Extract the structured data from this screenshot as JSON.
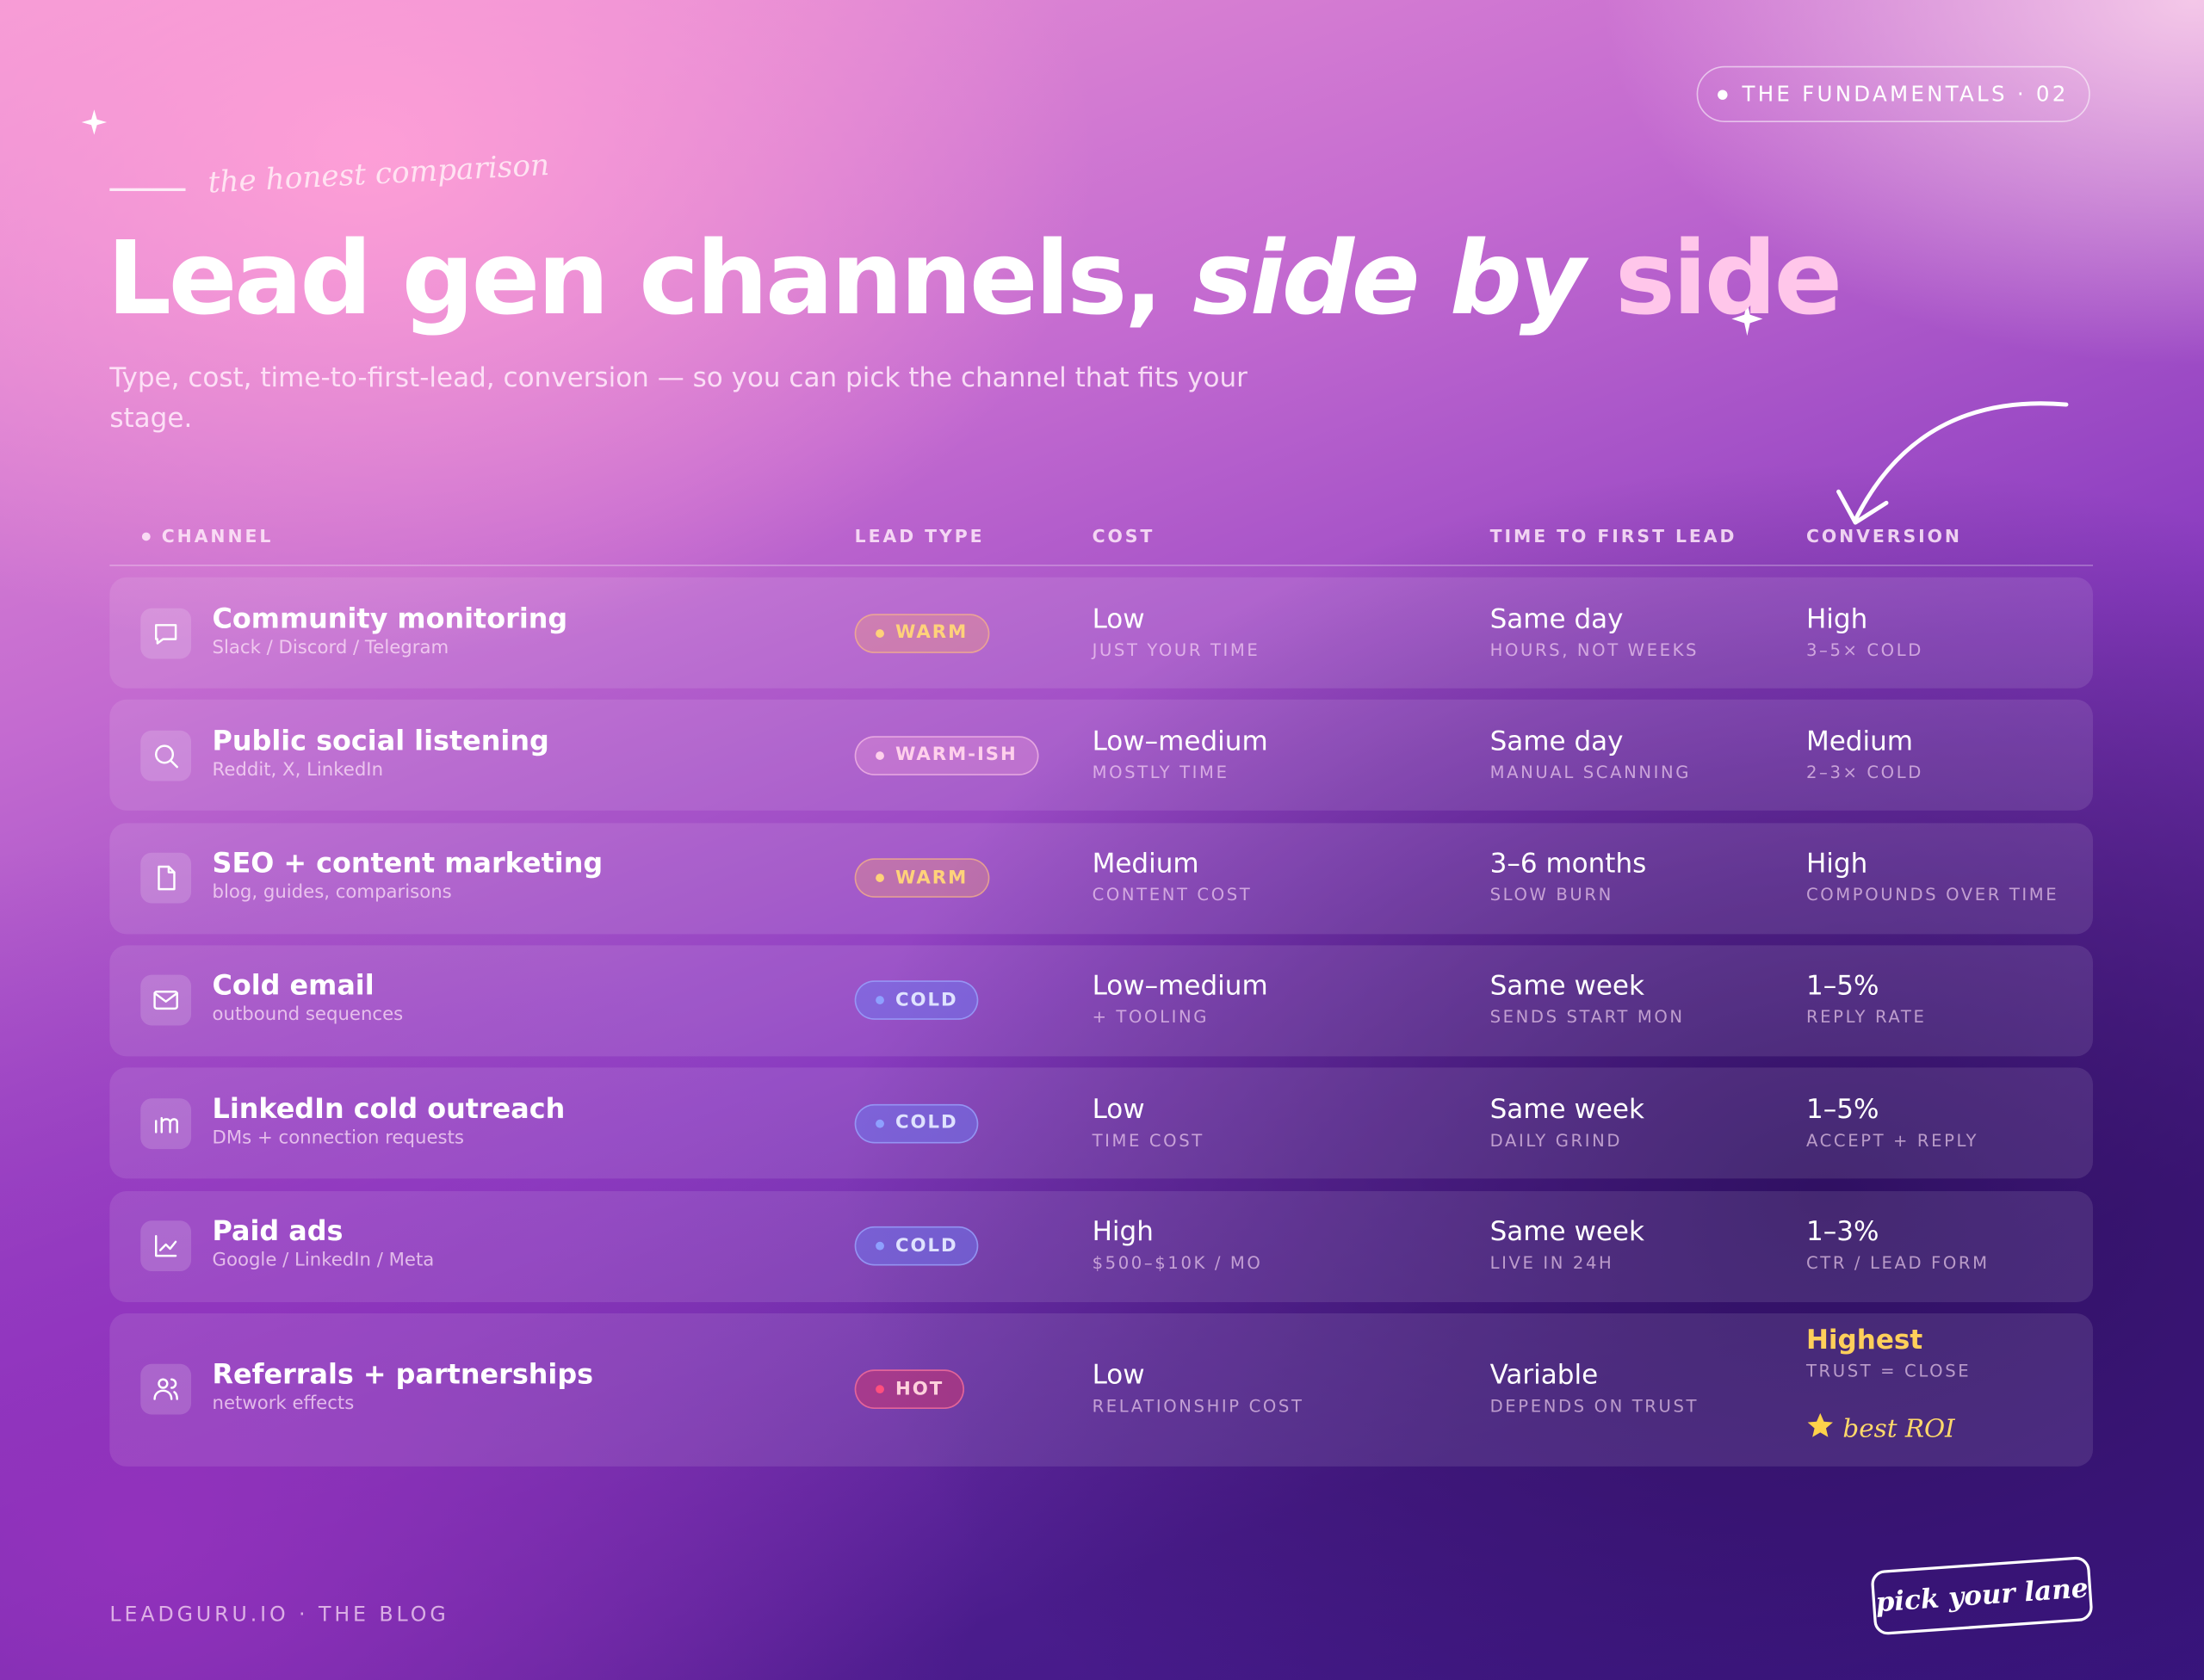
{
  "badge": "THE FUNDAMENTALS · 02",
  "eyebrow": "the honest comparison",
  "title": {
    "part1": "Lead gen channels,",
    "part2": "side by",
    "part3": "side"
  },
  "subtitle": "Type, cost, time-to-first-lead, conversion — so you can pick the channel that fits your stage.",
  "table": {
    "columns": [
      "CHANNEL",
      "LEAD TYPE",
      "COST",
      "TIME TO FIRST LEAD",
      "CONVERSION"
    ],
    "rows": [
      {
        "channel": "Community monitoring",
        "sources": "Slack / Discord / Telegram",
        "lead_type": "WARM",
        "cost": "Low",
        "cost_note": "JUST YOUR TIME",
        "time": "Same day",
        "time_note": "HOURS, NOT WEEKS",
        "conversion": "High",
        "conversion_note": "3–5× COLD"
      },
      {
        "channel": "Public social listening",
        "sources": "Reddit, X, LinkedIn",
        "lead_type": "WARM-ISH",
        "cost": "Low–medium",
        "cost_note": "MOSTLY TIME",
        "time": "Same day",
        "time_note": "MANUAL SCANNING",
        "conversion": "Medium",
        "conversion_note": "2–3× COLD"
      },
      {
        "channel": "SEO + content marketing",
        "sources": "blog, guides, comparisons",
        "lead_type": "WARM",
        "cost": "Medium",
        "cost_note": "CONTENT COST",
        "time": "3–6 months",
        "time_note": "SLOW BURN",
        "conversion": "High",
        "conversion_note": "COMPOUNDS OVER TIME"
      },
      {
        "channel": "Cold email",
        "sources": "outbound sequences",
        "lead_type": "COLD",
        "cost": "Low–medium",
        "cost_note": "+ TOOLING",
        "time": "Same week",
        "time_note": "SENDS START MON",
        "conversion": "1–5%",
        "conversion_note": "REPLY RATE"
      },
      {
        "channel": "LinkedIn cold outreach",
        "sources": "DMs + connection requests",
        "lead_type": "COLD",
        "cost": "Low",
        "cost_note": "TIME COST",
        "time": "Same week",
        "time_note": "DAILY GRIND",
        "conversion": "1–5%",
        "conversion_note": "ACCEPT + REPLY"
      },
      {
        "channel": "Paid ads",
        "sources": "Google / LinkedIn / Meta",
        "lead_type": "COLD",
        "cost": "High",
        "cost_note": "$500–$10K / MO",
        "time": "Same week",
        "time_note": "LIVE IN 24H",
        "conversion": "1–3%",
        "conversion_note": "CTR / LEAD FORM"
      },
      {
        "channel": "Referrals + partnerships",
        "sources": "network effects",
        "lead_type": "HOT",
        "cost": "Low",
        "cost_note": "RELATIONSHIP COST",
        "time": "Variable",
        "time_note": "DEPENDS ON TRUST",
        "conversion": "Highest",
        "conversion_note": "TRUST = CLOSE"
      }
    ]
  },
  "callout": "best ROI",
  "footer": "LEADGURU.IO · THE BLOG",
  "stamp": "pick your lane"
}
